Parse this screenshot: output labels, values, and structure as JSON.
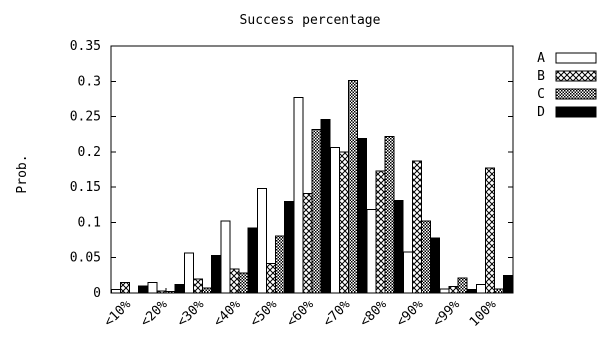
{
  "chart_data": {
    "type": "bar",
    "title": "Success percentage",
    "ylabel": "Prob.",
    "xlabel": "",
    "ylim": [
      0,
      0.35
    ],
    "yticks": [
      "0",
      "0.05",
      "0.1",
      "0.15",
      "0.2",
      "0.25",
      "0.3",
      "0.35"
    ],
    "categories": [
      "<10%",
      "<20%",
      "<30%",
      "<40%",
      "<50%",
      "<60%",
      "<70%",
      "<80%",
      "<90%",
      "<99%",
      "100%"
    ],
    "legend_position": "right",
    "series": [
      {
        "name": "A",
        "pattern": "white",
        "values": [
          0.005,
          0.015,
          0.057,
          0.102,
          0.148,
          0.277,
          0.206,
          0.118,
          0.058,
          0.006,
          0.012
        ]
      },
      {
        "name": "B",
        "pattern": "crosshatch",
        "values": [
          0.015,
          0.003,
          0.02,
          0.034,
          0.042,
          0.141,
          0.2,
          0.173,
          0.187,
          0.009,
          0.177
        ]
      },
      {
        "name": "C",
        "pattern": "dense-checker",
        "values": [
          0.0,
          0.002,
          0.007,
          0.028,
          0.081,
          0.232,
          0.301,
          0.222,
          0.102,
          0.021,
          0.006
        ]
      },
      {
        "name": "D",
        "pattern": "black",
        "values": [
          0.01,
          0.012,
          0.053,
          0.092,
          0.13,
          0.246,
          0.219,
          0.131,
          0.078,
          0.005,
          0.025
        ]
      }
    ]
  }
}
